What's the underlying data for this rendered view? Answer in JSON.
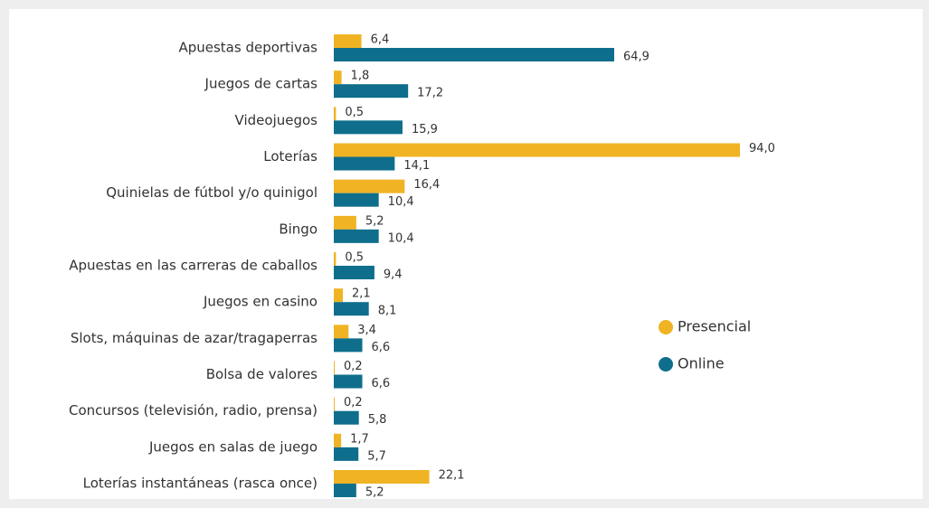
{
  "chart_data": {
    "type": "bar",
    "orientation": "horizontal",
    "categories": [
      "Apuestas deportivas",
      "Juegos de cartas",
      "Videojuegos",
      "Loterías",
      "Quinielas de fútbol y/o quinigol",
      "Bingo",
      "Apuestas en las carreras de caballos",
      "Juegos en casino",
      "Slots, máquinas de azar/tragaperras",
      "Bolsa de valores",
      "Concursos (televisión, radio, prensa)",
      "Juegos en salas de juego",
      "Loterías instantáneas (rasca once)"
    ],
    "series": [
      {
        "name": "Presencial",
        "color": "#f0b323",
        "values": [
          6.4,
          1.8,
          0.5,
          94.0,
          16.4,
          5.2,
          0.5,
          2.1,
          3.4,
          0.2,
          0.2,
          1.7,
          22.1
        ],
        "value_labels": [
          "6,4",
          "1,8",
          "0,5",
          "94,0",
          "16,4",
          "5,2",
          "0,5",
          "2,1",
          "3,4",
          "0,2",
          "0,2",
          "1,7",
          "22,1"
        ]
      },
      {
        "name": "Online",
        "color": "#0f6e8c",
        "values": [
          64.9,
          17.2,
          15.9,
          14.1,
          10.4,
          10.4,
          9.4,
          8.1,
          6.6,
          6.6,
          5.8,
          5.7,
          5.2
        ],
        "value_labels": [
          "64,9",
          "17,2",
          "15,9",
          "14,1",
          "10,4",
          "10,4",
          "9,4",
          "8,1",
          "6,6",
          "6,6",
          "5,8",
          "5,7",
          "5,2"
        ]
      }
    ],
    "legend": "right"
  }
}
